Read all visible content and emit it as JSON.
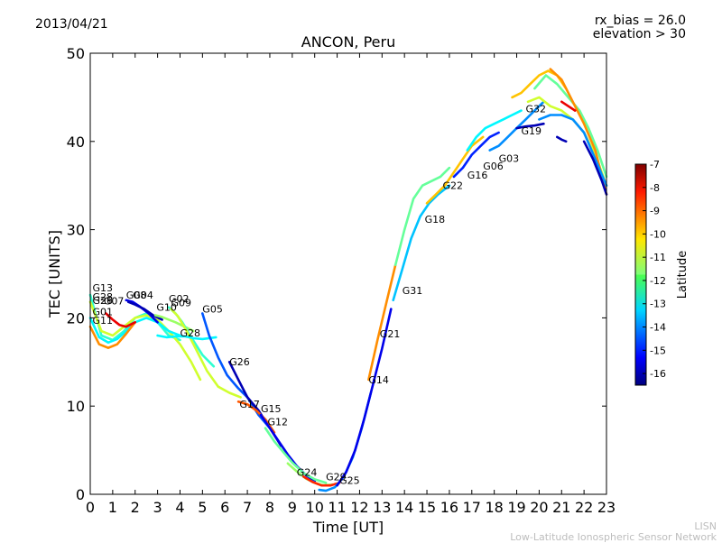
{
  "header": {
    "date": "2013/04/21",
    "rx_bias": "rx_bias = 26.0",
    "elevation": "elevation > 30"
  },
  "footer": {
    "short": "LISN",
    "long": "Low-Latitude Ionospheric Sensor Network"
  },
  "chart_data": {
    "type": "line",
    "title": "ANCON, Peru",
    "xlabel": "Time [UT]",
    "ylabel": "TEC [UNITS]",
    "xlim": [
      0,
      23
    ],
    "ylim": [
      0,
      50
    ],
    "xticks": [
      "0",
      "1",
      "2",
      "3",
      "4",
      "5",
      "6",
      "7",
      "8",
      "9",
      "10",
      "11",
      "12",
      "13",
      "14",
      "15",
      "16",
      "17",
      "18",
      "19",
      "20",
      "21",
      "22",
      "23"
    ],
    "yticks": [
      "0",
      "10",
      "20",
      "30",
      "40",
      "50"
    ],
    "grid": false,
    "colorbar": {
      "label": "Latitude",
      "min": -16.5,
      "max": -7,
      "ticks": [
        "-7",
        "-8",
        "-9",
        "-10",
        "-11",
        "-12",
        "-13",
        "-14",
        "-15",
        "-16"
      ]
    },
    "series": [
      {
        "name": "G13",
        "lat": -12.5,
        "x": [
          0,
          0.5,
          1,
          1.5,
          2,
          2.5,
          3,
          3.5,
          4
        ],
        "y": [
          22.6,
          18,
          17.5,
          18.5,
          20,
          20.5,
          19.5,
          18,
          17.5
        ]
      },
      {
        "name": "G28",
        "lat": -11,
        "x": [
          0,
          0.5,
          1,
          1.5,
          2,
          2.5,
          3,
          3.5,
          4,
          4.5,
          4.9
        ],
        "y": [
          21.8,
          18.5,
          18,
          19,
          20,
          20.3,
          19.8,
          18.5,
          17,
          15,
          13
        ]
      },
      {
        "name": "G01",
        "lat": -13,
        "x": [
          0,
          0.4,
          0.8,
          1.2,
          1.6,
          2,
          2.5,
          3,
          3.5,
          4
        ],
        "y": [
          20,
          17.8,
          17.2,
          17.6,
          18.5,
          19.5,
          20,
          19.5,
          18.5,
          18
        ]
      },
      {
        "name": "G11",
        "lat": -9.5,
        "x": [
          0,
          0.4,
          0.8,
          1.2,
          1.6,
          2
        ],
        "y": [
          19,
          17,
          16.6,
          17,
          18.2,
          19.5
        ]
      },
      {
        "name": "G07",
        "lat": -8,
        "x": [
          0.7,
          1,
          1.3,
          1.6,
          2
        ],
        "y": [
          20.5,
          19.8,
          19.2,
          19,
          19.5
        ]
      },
      {
        "name": "G08",
        "lat": -15.5,
        "x": [
          1.6,
          1.9,
          2.2,
          2.6,
          3
        ],
        "y": [
          22,
          21.8,
          21.3,
          20.5,
          19.5
        ]
      },
      {
        "name": "G04",
        "lat": -16,
        "x": [
          1.7,
          2,
          2.4,
          2.8,
          3.2
        ],
        "y": [
          21.8,
          21.5,
          21,
          20.3,
          19.8
        ]
      },
      {
        "name": "G10",
        "lat": -11.5,
        "x": [
          2.9,
          3.2,
          3.5,
          3.8,
          4.2,
          4.6
        ],
        "y": [
          20.3,
          20.1,
          19.8,
          19.5,
          19,
          18.5
        ]
      },
      {
        "name": "G02",
        "lat": -12.5,
        "x": [
          3.5,
          3.8,
          4.1,
          4.5,
          5,
          5.5
        ],
        "y": [
          21.2,
          20.5,
          19.5,
          17.8,
          15.8,
          14.5
        ]
      },
      {
        "name": "G09",
        "lat": -11,
        "x": [
          3.6,
          3.9,
          4.3,
          4.7,
          5.2,
          5.7,
          6.2,
          6.7
        ],
        "y": [
          21,
          20.2,
          18.5,
          16.5,
          14,
          12.2,
          11.5,
          11
        ]
      },
      {
        "name": "G28b",
        "lat": -13,
        "x": [
          3,
          3.4,
          3.8,
          4.2,
          4.6,
          5,
          5.6
        ],
        "y": [
          18,
          17.8,
          17.9,
          17.9,
          17.7,
          17.6,
          17.8
        ]
      },
      {
        "name": "G05",
        "lat": -14.5,
        "x": [
          5,
          5.3,
          5.7,
          6.1,
          6.6,
          7,
          7.5,
          8
        ],
        "y": [
          20.5,
          18,
          15.5,
          13.5,
          12,
          11,
          9,
          7.5
        ]
      },
      {
        "name": "G26",
        "lat": -16,
        "x": [
          6.2,
          6.6,
          7,
          7.5,
          8,
          8.5
        ],
        "y": [
          15,
          13,
          11,
          9.5,
          7.5,
          5.5
        ]
      },
      {
        "name": "G17",
        "lat": -9,
        "x": [
          6.6,
          7,
          7.4,
          7.8,
          8.2
        ],
        "y": [
          10.5,
          10.2,
          9.5,
          8.5,
          7
        ]
      },
      {
        "name": "G15",
        "lat": -15.5,
        "x": [
          7.6,
          8,
          8.4,
          8.8,
          9.2,
          9.6,
          10
        ],
        "y": [
          9,
          7.5,
          6,
          4.5,
          3.2,
          2.2,
          1.5
        ]
      },
      {
        "name": "G12",
        "lat": -12,
        "x": [
          7.8,
          8.2,
          8.6,
          9,
          9.5,
          10,
          10.5
        ],
        "y": [
          7.5,
          6,
          4.8,
          3.6,
          2.4,
          1.7,
          1.3
        ]
      },
      {
        "name": "G24",
        "lat": -11.5,
        "x": [
          8.8,
          9.2,
          9.6,
          10,
          10.4,
          10.8
        ],
        "y": [
          3.5,
          2.6,
          1.8,
          1.3,
          1,
          1.1
        ]
      },
      {
        "name": "G29",
        "lat": -8.5,
        "x": [
          9.5,
          9.9,
          10.3,
          10.7,
          11.1
        ],
        "y": [
          2,
          1.4,
          1,
          1,
          1.3
        ]
      },
      {
        "name": "G25",
        "lat": -14,
        "x": [
          10.2,
          10.5,
          10.9,
          11.3,
          11.7,
          12.1,
          12.5
        ],
        "y": [
          0.5,
          0.4,
          0.8,
          2,
          4.2,
          7.5,
          11.5
        ]
      },
      {
        "name": "G14",
        "lat": -15.5,
        "x": [
          11,
          11.4,
          11.8,
          12.2,
          12.6,
          13,
          13.4
        ],
        "y": [
          1,
          2.5,
          5,
          8.5,
          12.5,
          16.5,
          21
        ]
      },
      {
        "name": "G21",
        "lat": -9.5,
        "x": [
          12.4,
          12.8,
          13.2,
          13.6
        ],
        "y": [
          13,
          17.5,
          21.8,
          26
        ]
      },
      {
        "name": "G31",
        "lat": -13.5,
        "x": [
          13.5,
          13.9,
          14.3,
          14.7,
          15.1,
          15.5,
          16
        ],
        "y": [
          22,
          25.5,
          29,
          31.5,
          33,
          34,
          35
        ]
      },
      {
        "name": "G18",
        "lat": -12,
        "x": [
          13.6,
          14,
          14.4,
          14.8,
          15.2,
          15.6,
          16
        ],
        "y": [
          26,
          30,
          33.5,
          35,
          35.5,
          36,
          37
        ]
      },
      {
        "name": "G22",
        "lat": -10,
        "x": [
          15,
          15.4,
          15.8,
          16.2,
          16.6,
          17,
          17.5
        ],
        "y": [
          33,
          34,
          35,
          36.5,
          38,
          39.5,
          40.5
        ]
      },
      {
        "name": "G16",
        "lat": -15,
        "x": [
          16.2,
          16.6,
          17,
          17.4,
          17.8,
          18.2
        ],
        "y": [
          36,
          37,
          38.5,
          39.5,
          40.5,
          41
        ]
      },
      {
        "name": "G06",
        "lat": -13,
        "x": [
          16.8,
          17.2,
          17.6,
          18,
          18.4,
          18.8,
          19.2
        ],
        "y": [
          39,
          40.5,
          41.5,
          42,
          42.5,
          43,
          43.5
        ]
      },
      {
        "name": "G03",
        "lat": -14,
        "x": [
          17.8,
          18.2,
          18.6,
          19,
          19.4,
          19.8,
          20.2
        ],
        "y": [
          39,
          39.5,
          40.5,
          41.5,
          42.5,
          43.5,
          44.5
        ]
      },
      {
        "name": "G19",
        "lat": -16,
        "x": [
          19,
          19.4,
          19.8,
          20.2
        ],
        "y": [
          41.5,
          41.7,
          41.8,
          42
        ]
      },
      {
        "name": "G32",
        "lat": -10,
        "x": [
          18.8,
          19.2,
          19.6,
          20,
          20.4,
          20.8,
          21.2
        ],
        "y": [
          45,
          45.5,
          46.5,
          47.5,
          48,
          47.5,
          46
        ]
      },
      {
        "name": "",
        "lat": -11,
        "x": [
          19.5,
          20,
          20.5,
          21,
          21.5,
          22,
          22.5,
          23
        ],
        "y": [
          44.5,
          45,
          44,
          43.5,
          42.5,
          41,
          38.5,
          35
        ]
      },
      {
        "name": "",
        "lat": -12,
        "x": [
          19.8,
          20.3,
          20.8,
          21.3,
          21.8,
          22.2,
          22.6,
          23
        ],
        "y": [
          46,
          47.5,
          46.5,
          45,
          43.5,
          41.5,
          39,
          36
        ]
      },
      {
        "name": "",
        "lat": -9.5,
        "x": [
          20.5,
          21,
          21.5,
          22,
          22.5,
          23
        ],
        "y": [
          48.2,
          47,
          44.5,
          42,
          39,
          34
        ]
      },
      {
        "name": "",
        "lat": -14,
        "x": [
          20,
          20.5,
          21,
          21.5,
          22,
          22.5,
          23
        ],
        "y": [
          42.5,
          43,
          43,
          42.5,
          41,
          38,
          35
        ]
      },
      {
        "name": "",
        "lat": -8,
        "x": [
          21,
          21.3,
          21.6
        ],
        "y": [
          44.5,
          44,
          43.5
        ]
      },
      {
        "name": "",
        "lat": -16,
        "x": [
          20.8,
          21,
          21.2
        ],
        "y": [
          40.5,
          40.2,
          40
        ]
      },
      {
        "name": "",
        "lat": -16,
        "x": [
          22,
          22.4,
          22.8,
          23
        ],
        "y": [
          40,
          38,
          35.5,
          34
        ]
      }
    ],
    "labels": [
      {
        "text": "G13",
        "x": 0.1,
        "y": 23
      },
      {
        "text": "G28",
        "x": 0.1,
        "y": 22
      },
      {
        "text": "G26",
        "x": 0.1,
        "y": 21.6
      },
      {
        "text": "G07",
        "x": 0.6,
        "y": 21.5
      },
      {
        "text": "G01",
        "x": 0.1,
        "y": 20.3
      },
      {
        "text": "G11",
        "x": 0.1,
        "y": 19.3
      },
      {
        "text": "G08",
        "x": 1.6,
        "y": 22.2
      },
      {
        "text": "G04",
        "x": 1.9,
        "y": 22.2
      },
      {
        "text": "G10",
        "x": 2.95,
        "y": 20.8
      },
      {
        "text": "G02",
        "x": 3.5,
        "y": 21.8
      },
      {
        "text": "G09",
        "x": 3.6,
        "y": 21.3
      },
      {
        "text": "G28",
        "x": 4,
        "y": 17.9
      },
      {
        "text": "G05",
        "x": 5,
        "y": 20.6
      },
      {
        "text": "G26",
        "x": 6.2,
        "y": 14.6
      },
      {
        "text": "G17",
        "x": 6.65,
        "y": 9.8
      },
      {
        "text": "G15",
        "x": 7.6,
        "y": 9.3
      },
      {
        "text": "G12",
        "x": 7.9,
        "y": 7.8
      },
      {
        "text": "G24",
        "x": 9.2,
        "y": 2.1
      },
      {
        "text": "G29",
        "x": 10.5,
        "y": 1.6
      },
      {
        "text": "G25",
        "x": 11.1,
        "y": 1.2
      },
      {
        "text": "G14",
        "x": 12.4,
        "y": 12.6
      },
      {
        "text": "G21",
        "x": 12.9,
        "y": 17.8
      },
      {
        "text": "G31",
        "x": 13.9,
        "y": 22.7
      },
      {
        "text": "G18",
        "x": 14.9,
        "y": 30.8
      },
      {
        "text": "G22",
        "x": 15.7,
        "y": 34.6
      },
      {
        "text": "G16",
        "x": 16.8,
        "y": 35.8
      },
      {
        "text": "G06",
        "x": 17.5,
        "y": 36.8
      },
      {
        "text": "G03",
        "x": 18.2,
        "y": 37.7
      },
      {
        "text": "G19",
        "x": 19.2,
        "y": 40.8
      },
      {
        "text": "G32",
        "x": 19.4,
        "y": 43.3
      }
    ]
  }
}
